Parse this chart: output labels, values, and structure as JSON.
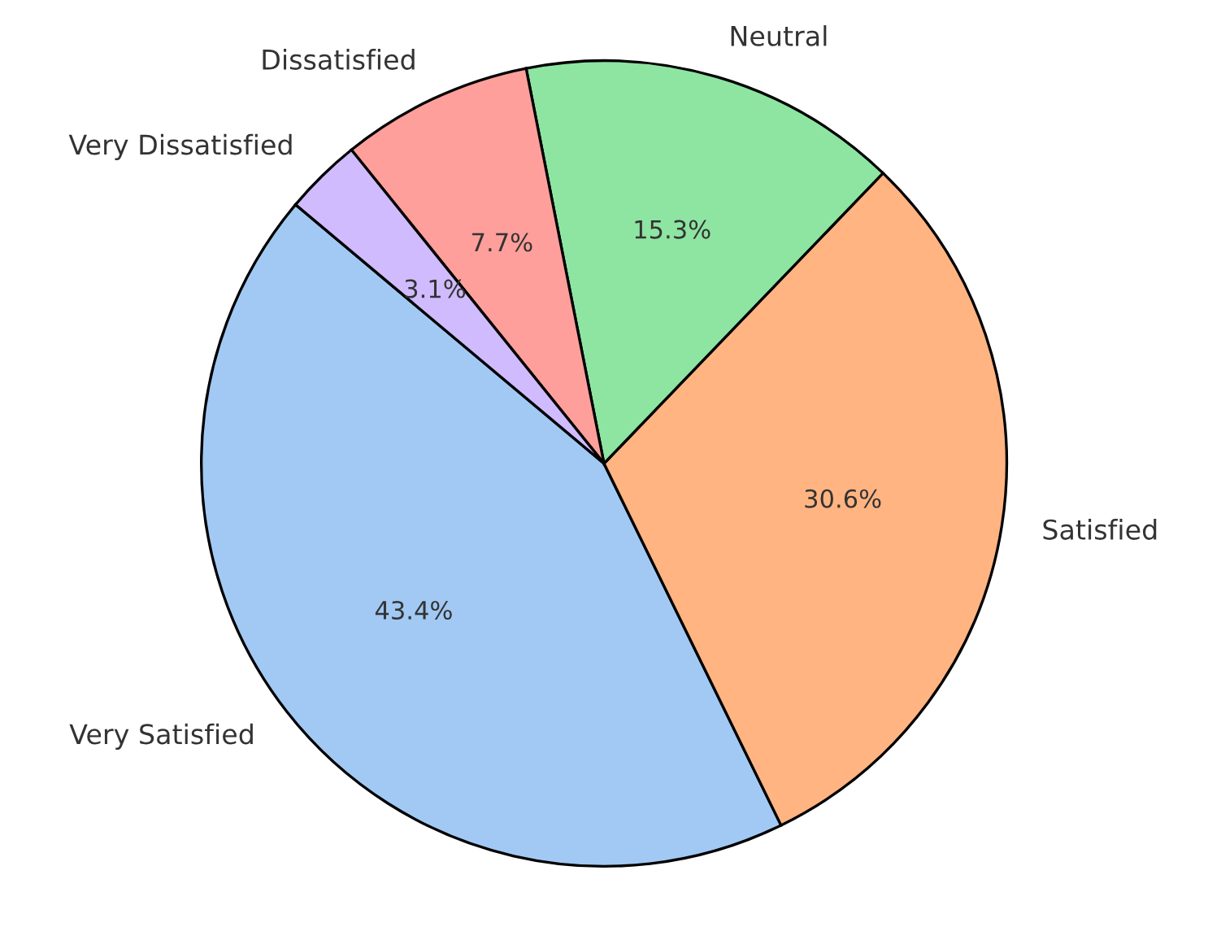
{
  "chart_data": {
    "type": "pie",
    "categories": [
      "Very Satisfied",
      "Satisfied",
      "Neutral",
      "Dissatisfied",
      "Very Dissatisfied"
    ],
    "values": [
      43.4,
      30.6,
      15.3,
      7.7,
      3.1
    ],
    "colors": [
      "#a1c9f4",
      "#ffb482",
      "#8de5a1",
      "#ff9f9b",
      "#d0bbff"
    ],
    "value_labels": [
      "43.4%",
      "30.6%",
      "15.3%",
      "7.7%",
      "3.1%"
    ]
  }
}
